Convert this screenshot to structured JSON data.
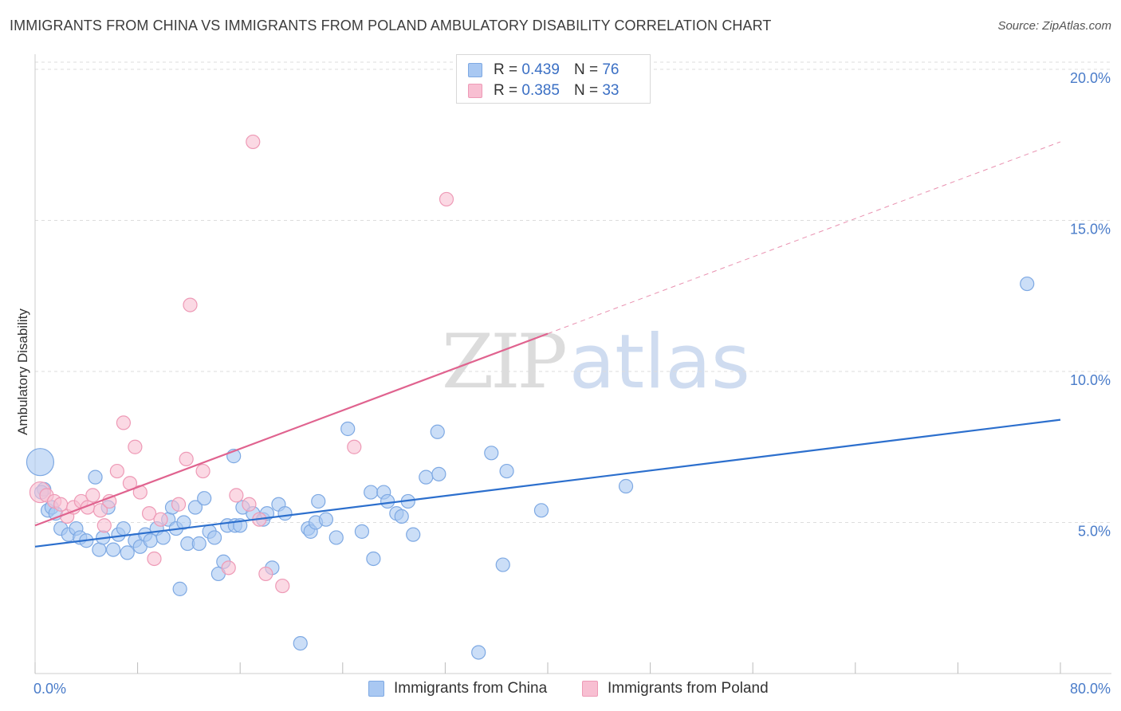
{
  "header": {
    "title": "IMMIGRANTS FROM CHINA VS IMMIGRANTS FROM POLAND AMBULATORY DISABILITY CORRELATION CHART",
    "source": "Source: ZipAtlas.com"
  },
  "watermark": {
    "zip": "ZIP",
    "atlas": "atlas"
  },
  "legend": {
    "rows": [
      {
        "r_label": "R =",
        "r_value": "0.439",
        "n_label": "N =",
        "n_value": "76"
      },
      {
        "r_label": "R =",
        "r_value": "0.385",
        "n_label": "N =",
        "n_value": "33"
      }
    ]
  },
  "colors": {
    "china_fill": "#a9c8f2",
    "china_stroke": "#7ea9e3",
    "china_line": "#2c6fcd",
    "poland_fill": "#f8bfd2",
    "poland_stroke": "#ee9ab6",
    "poland_line": "#e0638f",
    "grid": "#dddddd",
    "tick_text": "#4a7cc9"
  },
  "chart_data": {
    "type": "scatter",
    "title": "IMMIGRANTS FROM CHINA VS IMMIGRANTS FROM POLAND AMBULATORY DISABILITY CORRELATION CHART",
    "xlabel": "",
    "ylabel": "Ambulatory Disability",
    "xlim": [
      0,
      80
    ],
    "ylim": [
      0,
      20.5
    ],
    "x_tick_labels": [
      "0.0%",
      "80.0%"
    ],
    "y_ticks": [
      {
        "value": 5,
        "label": "5.0%"
      },
      {
        "value": 10,
        "label": "10.0%"
      },
      {
        "value": 15,
        "label": "15.0%"
      },
      {
        "value": 20,
        "label": "20.0%"
      }
    ],
    "x_tick_marks": [
      0,
      8,
      16,
      24,
      32,
      40,
      48,
      56,
      64,
      72,
      80
    ],
    "grid": true,
    "legend_position": "top-center",
    "series": [
      {
        "name": "Immigrants from China",
        "r": 0.439,
        "n": 76,
        "trend": {
          "x0": 0,
          "y0": 4.2,
          "x1": 80,
          "y1": 8.4,
          "dashed_from": null
        },
        "points": [
          [
            0.4,
            7.0,
            3
          ],
          [
            0.7,
            6.1,
            1
          ],
          [
            1.0,
            5.4,
            1
          ],
          [
            1.3,
            5.5,
            1
          ],
          [
            1.6,
            5.3,
            1
          ],
          [
            2.0,
            4.8,
            1
          ],
          [
            2.6,
            4.6,
            1
          ],
          [
            3.2,
            4.8,
            1
          ],
          [
            3.5,
            4.5,
            1
          ],
          [
            4.0,
            4.4,
            1
          ],
          [
            4.7,
            6.5,
            1
          ],
          [
            5.0,
            4.1,
            1
          ],
          [
            5.3,
            4.5,
            1
          ],
          [
            5.7,
            5.5,
            1
          ],
          [
            6.1,
            4.1,
            1
          ],
          [
            6.5,
            4.6,
            1
          ],
          [
            6.9,
            4.8,
            1
          ],
          [
            7.2,
            4.0,
            1
          ],
          [
            7.8,
            4.4,
            1
          ],
          [
            8.2,
            4.2,
            1
          ],
          [
            8.6,
            4.6,
            1
          ],
          [
            9.0,
            4.4,
            1
          ],
          [
            9.5,
            4.8,
            1
          ],
          [
            10.0,
            4.5,
            1
          ],
          [
            10.4,
            5.1,
            1
          ],
          [
            10.7,
            5.5,
            1
          ],
          [
            11.0,
            4.8,
            1
          ],
          [
            11.3,
            2.8,
            1
          ],
          [
            11.6,
            5.0,
            1
          ],
          [
            11.9,
            4.3,
            1
          ],
          [
            12.5,
            5.5,
            1
          ],
          [
            12.8,
            4.3,
            1
          ],
          [
            13.2,
            5.8,
            1
          ],
          [
            13.6,
            4.7,
            1
          ],
          [
            14.0,
            4.5,
            1
          ],
          [
            14.3,
            3.3,
            1
          ],
          [
            14.7,
            3.7,
            1
          ],
          [
            15.0,
            4.9,
            1
          ],
          [
            15.5,
            7.2,
            1
          ],
          [
            15.6,
            4.9,
            1
          ],
          [
            16.0,
            4.9,
            1
          ],
          [
            16.2,
            5.5,
            1
          ],
          [
            17.0,
            5.3,
            1
          ],
          [
            17.8,
            5.1,
            1
          ],
          [
            18.1,
            5.3,
            1
          ],
          [
            18.5,
            3.5,
            1
          ],
          [
            19.0,
            5.6,
            1
          ],
          [
            19.5,
            5.3,
            1
          ],
          [
            20.7,
            1.0,
            1
          ],
          [
            21.3,
            4.8,
            1
          ],
          [
            21.5,
            4.7,
            1
          ],
          [
            21.9,
            5.0,
            1
          ],
          [
            22.1,
            5.7,
            1
          ],
          [
            22.7,
            5.1,
            1
          ],
          [
            23.5,
            4.5,
            1
          ],
          [
            24.4,
            8.1,
            1
          ],
          [
            25.5,
            4.7,
            1
          ],
          [
            26.4,
            3.8,
            1
          ],
          [
            26.2,
            6.0,
            1
          ],
          [
            27.2,
            6.0,
            1
          ],
          [
            27.5,
            5.7,
            1
          ],
          [
            28.2,
            5.3,
            1
          ],
          [
            28.6,
            5.2,
            1
          ],
          [
            29.1,
            5.7,
            1
          ],
          [
            29.5,
            4.6,
            1
          ],
          [
            30.5,
            6.5,
            1
          ],
          [
            31.4,
            8.0,
            1
          ],
          [
            31.5,
            6.6,
            1
          ],
          [
            34.6,
            0.7,
            1
          ],
          [
            35.6,
            7.3,
            1
          ],
          [
            36.5,
            3.6,
            1
          ],
          [
            36.8,
            6.7,
            1
          ],
          [
            39.5,
            5.4,
            1
          ],
          [
            46.1,
            6.2,
            1
          ],
          [
            77.4,
            12.9,
            1
          ],
          [
            0.5,
            6.0,
            1
          ]
        ]
      },
      {
        "name": "Immigrants from Poland",
        "r": 0.385,
        "n": 33,
        "trend": {
          "x0": 0,
          "y0": 4.9,
          "x1": 80,
          "y1": 17.6,
          "dashed_from": 40
        },
        "points": [
          [
            0.4,
            6.0,
            2
          ],
          [
            0.9,
            5.9,
            1
          ],
          [
            1.5,
            5.7,
            1
          ],
          [
            2.0,
            5.6,
            1
          ],
          [
            2.5,
            5.2,
            1
          ],
          [
            3.0,
            5.5,
            1
          ],
          [
            3.6,
            5.7,
            1
          ],
          [
            4.1,
            5.5,
            1
          ],
          [
            4.5,
            5.9,
            1
          ],
          [
            5.1,
            5.4,
            1
          ],
          [
            5.4,
            4.9,
            1
          ],
          [
            5.8,
            5.7,
            1
          ],
          [
            6.4,
            6.7,
            1
          ],
          [
            6.9,
            8.3,
            1
          ],
          [
            7.4,
            6.3,
            1
          ],
          [
            7.8,
            7.5,
            1
          ],
          [
            8.2,
            6.0,
            1
          ],
          [
            8.9,
            5.3,
            1
          ],
          [
            9.3,
            3.8,
            1
          ],
          [
            9.8,
            5.1,
            1
          ],
          [
            11.2,
            5.6,
            1
          ],
          [
            11.8,
            7.1,
            1
          ],
          [
            12.1,
            12.2,
            1
          ],
          [
            13.1,
            6.7,
            1
          ],
          [
            15.1,
            3.5,
            1
          ],
          [
            15.7,
            5.9,
            1
          ],
          [
            16.7,
            5.6,
            1
          ],
          [
            17.0,
            17.6,
            1
          ],
          [
            17.5,
            5.1,
            1
          ],
          [
            18.0,
            3.3,
            1
          ],
          [
            19.3,
            2.9,
            1
          ],
          [
            24.9,
            7.5,
            1
          ],
          [
            32.1,
            15.7,
            1
          ]
        ]
      }
    ]
  },
  "bottom_legend": [
    {
      "label": "Immigrants from China"
    },
    {
      "label": "Immigrants from Poland"
    }
  ]
}
